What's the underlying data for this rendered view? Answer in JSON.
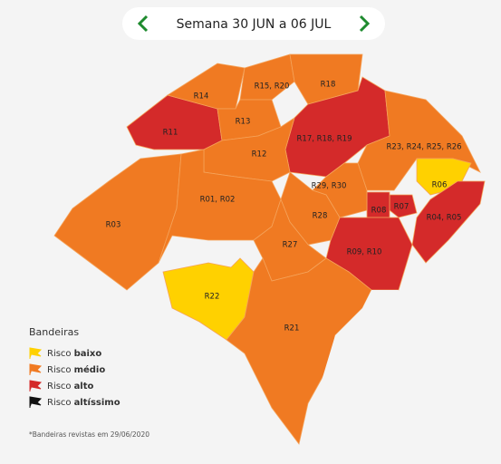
{
  "header": {
    "week": "Semana 30 JUN a 06 JUL"
  },
  "regions": [
    "R03",
    "R11",
    "R14",
    "R15, R20",
    "R18",
    "R13",
    "R17, R18, R19",
    "R23, R24, R25, R26",
    "R06",
    "R04, R05",
    "R07",
    "R08",
    "R09, R10",
    "R29, R30",
    "R28",
    "R12",
    "R01, R02",
    "R27",
    "R22",
    "R21"
  ],
  "legend": {
    "title": "Bandeiras",
    "items": [
      {
        "prefix": "Risco",
        "level": "baixo"
      },
      {
        "prefix": "Risco",
        "level": "médio"
      },
      {
        "prefix": "Risco",
        "level": "alto"
      },
      {
        "prefix": "Risco",
        "level": "altíssimo"
      }
    ]
  },
  "footnote": "*Bandeiras revistas em 29/06/2020"
}
